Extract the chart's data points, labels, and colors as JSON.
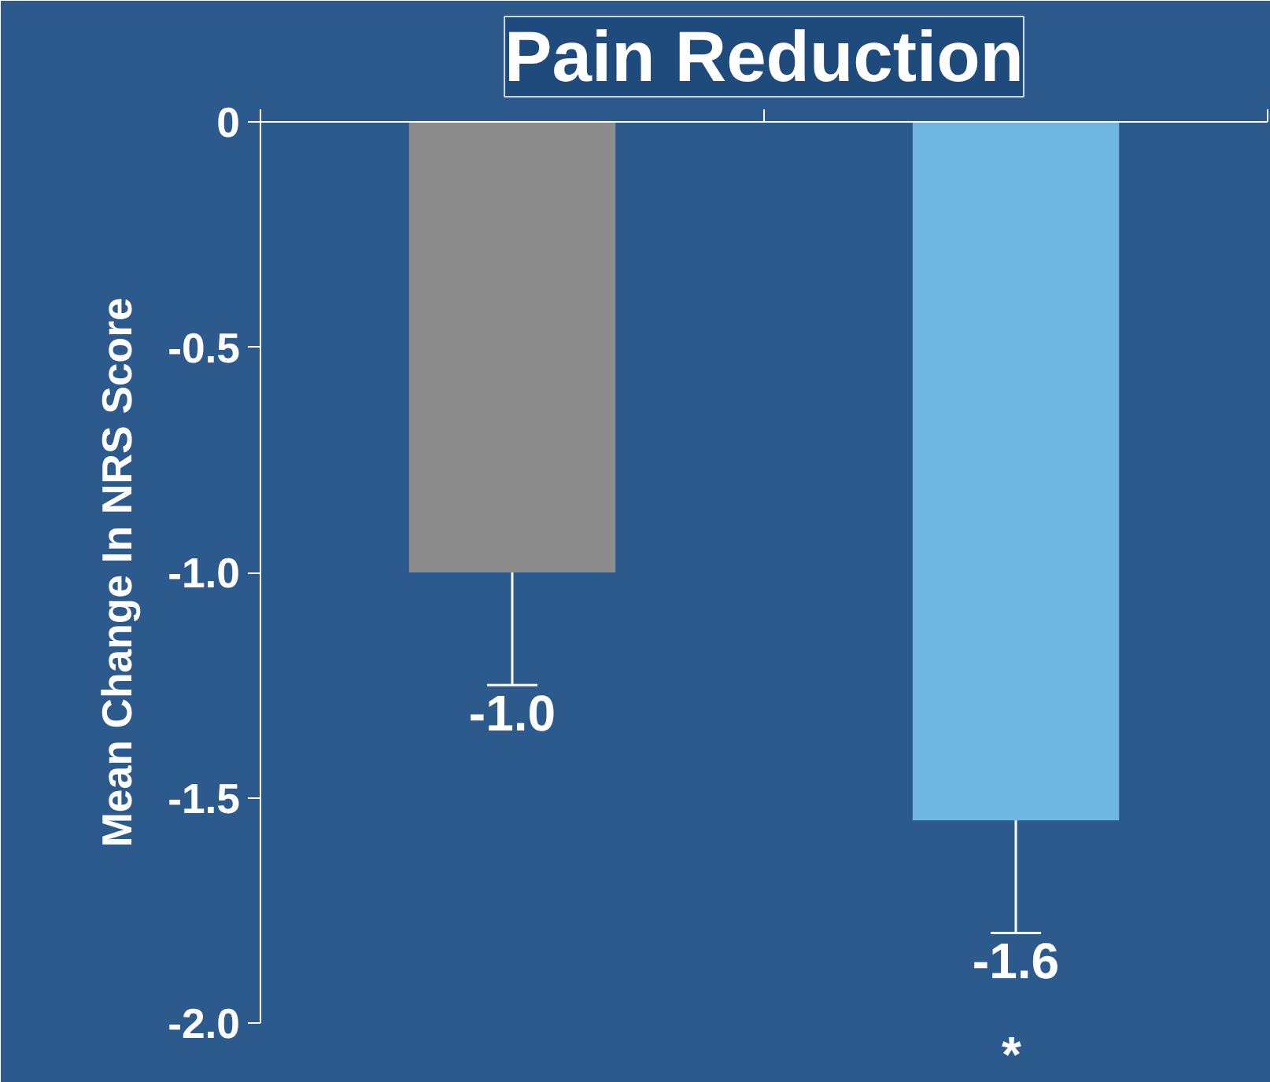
{
  "chart_data": {
    "type": "bar",
    "title": "Pain Reduction",
    "ylabel": "Mean Change In NRS Score",
    "categories": [
      null,
      null
    ],
    "values": [
      -1.0,
      -1.55
    ],
    "colors": [
      "#8c8c8c",
      "#6fb7e0"
    ],
    "value_labels": [
      "-1.0",
      "-1.6"
    ],
    "errors": [
      [
        -1.25,
        -1.0
      ],
      [
        -1.8,
        -1.55
      ]
    ],
    "ylim": [
      -2.0,
      0
    ],
    "yticks": [
      {
        "value": -2.0,
        "label": "-2.0"
      },
      {
        "value": -1.5,
        "label": "-1.5"
      },
      {
        "value": -1.0,
        "label": "-1.0"
      },
      {
        "value": -0.5,
        "label": "-0.5"
      },
      0
    ],
    "tick_labels": "y",
    "grid": false,
    "annotations": [
      "*"
    ]
  }
}
